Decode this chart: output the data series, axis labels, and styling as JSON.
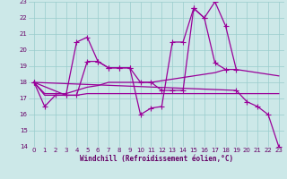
{
  "x": [
    0,
    1,
    2,
    3,
    4,
    5,
    6,
    7,
    8,
    9,
    10,
    11,
    12,
    13,
    14,
    15,
    16,
    17,
    18,
    19,
    20,
    21,
    22,
    23
  ],
  "line1": [
    18.0,
    16.5,
    17.2,
    17.2,
    20.5,
    20.8,
    19.3,
    18.9,
    18.9,
    18.9,
    16.0,
    16.4,
    16.5,
    20.5,
    20.5,
    22.6,
    22.0,
    23.0,
    21.5,
    18.8,
    null,
    null,
    null,
    null
  ],
  "line2": [
    18.0,
    null,
    null,
    17.2,
    17.2,
    19.3,
    19.3,
    18.9,
    18.9,
    18.9,
    18.0,
    18.0,
    17.5,
    17.5,
    17.5,
    22.6,
    22.0,
    19.2,
    18.8,
    null,
    null,
    null,
    null,
    null
  ],
  "line3": [
    18.0,
    null,
    null,
    null,
    null,
    null,
    null,
    null,
    null,
    null,
    null,
    null,
    null,
    null,
    null,
    null,
    null,
    null,
    null,
    17.5,
    16.8,
    16.5,
    16.0,
    14.0
  ],
  "trend1": [
    18.0,
    17.2,
    17.2,
    17.2,
    17.2,
    17.3,
    17.3,
    17.3,
    17.3,
    17.3,
    17.3,
    17.3,
    17.3,
    17.3,
    17.3,
    17.3,
    17.3,
    17.3,
    17.3,
    17.3,
    17.3,
    17.3,
    17.3,
    17.3
  ],
  "trend2": [
    18.0,
    17.3,
    17.3,
    17.3,
    17.5,
    17.7,
    17.8,
    18.0,
    18.0,
    18.0,
    18.0,
    18.0,
    18.1,
    18.2,
    18.3,
    18.4,
    18.5,
    18.6,
    18.8,
    18.8,
    18.7,
    18.6,
    18.5,
    18.4
  ],
  "color": "#990099",
  "bg_color": "#cce8e8",
  "grid_color": "#99cccc",
  "xlim": [
    -0.5,
    23.5
  ],
  "ylim": [
    14,
    23
  ],
  "yticks": [
    14,
    15,
    16,
    17,
    18,
    19,
    20,
    21,
    22,
    23
  ],
  "xticks": [
    0,
    1,
    2,
    3,
    4,
    5,
    6,
    7,
    8,
    9,
    10,
    11,
    12,
    13,
    14,
    15,
    16,
    17,
    18,
    19,
    20,
    21,
    22,
    23
  ],
  "xlabel": "Windchill (Refroidissement éolien,°C)",
  "font_color": "#660066",
  "tick_fontsize": 5.0,
  "xlabel_fontsize": 5.5
}
